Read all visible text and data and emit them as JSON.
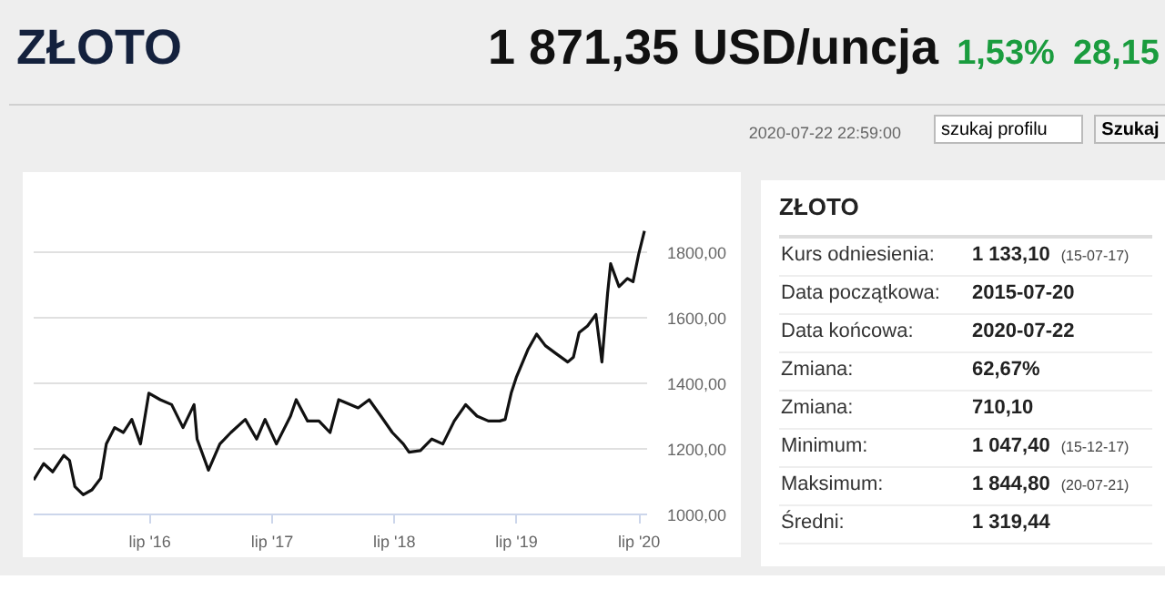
{
  "chart_data": {
    "type": "line",
    "title": "ZŁOTO",
    "x": [
      "2015-07-20",
      "2015-08-19",
      "2015-09-15",
      "2015-10-18",
      "2015-11-04",
      "2015-11-20",
      "2015-12-15",
      "2016-01-10",
      "2016-02-05",
      "2016-02-22",
      "2016-03-18",
      "2016-04-13",
      "2016-05-08",
      "2016-06-03",
      "2016-06-28",
      "2016-08-01",
      "2016-09-04",
      "2016-10-08",
      "2016-11-10",
      "2016-11-19",
      "2016-12-23",
      "2017-01-26",
      "2017-02-28",
      "2017-04-12",
      "2017-05-16",
      "2017-06-10",
      "2017-07-14",
      "2017-08-25",
      "2017-09-11",
      "2017-10-15",
      "2017-11-18",
      "2017-12-21",
      "2018-01-16",
      "2018-03-15",
      "2018-04-17",
      "2018-05-22",
      "2018-06-25",
      "2018-07-28",
      "2018-08-14",
      "2018-09-17",
      "2018-10-21",
      "2018-11-23",
      "2018-12-27",
      "2019-01-30",
      "2019-03-05",
      "2019-04-08",
      "2019-05-12",
      "2019-05-28",
      "2019-06-15",
      "2019-07-01",
      "2019-08-05",
      "2019-08-30",
      "2019-09-25",
      "2019-10-28",
      "2019-12-01",
      "2019-12-18",
      "2020-01-04",
      "2020-01-29",
      "2020-02-23",
      "2020-03-12",
      "2020-03-29",
      "2020-04-07",
      "2020-05-02",
      "2020-05-27",
      "2020-06-13",
      "2020-06-30",
      "2020-07-17"
    ],
    "series": [
      {
        "color": "#111111",
        "values": [
          1105,
          1155,
          1130,
          1180,
          1165,
          1085,
          1060,
          1075,
          1110,
          1215,
          1265,
          1250,
          1290,
          1215,
          1370,
          1350,
          1335,
          1265,
          1335,
          1230,
          1135,
          1215,
          1250,
          1290,
          1230,
          1290,
          1215,
          1300,
          1350,
          1285,
          1285,
          1250,
          1350,
          1325,
          1350,
          1300,
          1250,
          1215,
          1190,
          1195,
          1230,
          1215,
          1285,
          1335,
          1300,
          1285,
          1285,
          1290,
          1370,
          1420,
          1505,
          1550,
          1515,
          1490,
          1465,
          1480,
          1555,
          1575,
          1610,
          1465,
          1675,
          1765,
          1695,
          1720,
          1710,
          1795,
          1865
        ]
      }
    ],
    "xlim": [
      "2015-07-20",
      "2020-07-25"
    ],
    "xticks": [
      {
        "value": "2016-07-01",
        "label": "lip '16"
      },
      {
        "value": "2017-07-01",
        "label": "lip '17"
      },
      {
        "value": "2018-07-01",
        "label": "lip '18"
      },
      {
        "value": "2019-07-01",
        "label": "lip '19"
      },
      {
        "value": "2020-07-01",
        "label": "lip '20"
      }
    ],
    "ylim": [
      1000,
      2000
    ],
    "yticks": [
      {
        "value": 1000,
        "label": "1000,00"
      },
      {
        "value": 1200,
        "label": "1200,00"
      },
      {
        "value": 1400,
        "label": "1400,00"
      },
      {
        "value": 1600,
        "label": "1600,00"
      },
      {
        "value": 1800,
        "label": "1800,00"
      },
      {
        "value": 2000,
        "label": null
      }
    ],
    "grid": "y",
    "annotations": [
      "1 871,35 USD/uncja",
      "1,53%",
      "28,15",
      "2020-07-22 22:59:00",
      "szukaj profilu",
      "Szukaj",
      "ZŁOTO",
      "Kurs odniesienia:",
      "1 133,10",
      "(15-07-17)",
      "Data początkowa:",
      "2015-07-20",
      "Data końcowa:",
      "2020-07-22",
      "Zmiana:",
      "62,67%",
      "Zmiana:",
      "710,10",
      "Minimum:",
      "1 047,40",
      "(15-12-17)",
      "Maksimum:",
      "1 844,80",
      "(20-07-21)",
      "Średni:",
      "1 319,44"
    ]
  }
}
